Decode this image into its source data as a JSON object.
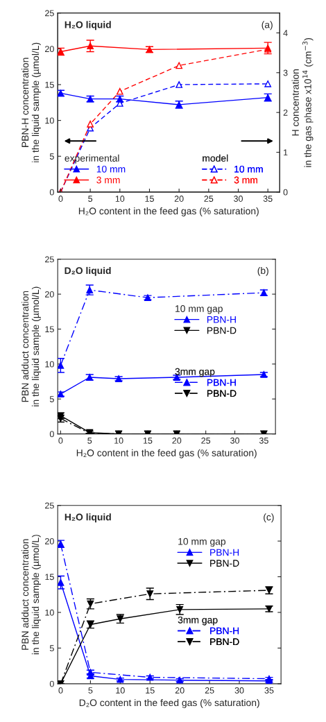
{
  "chart_data": [
    {
      "type": "line",
      "title": "H₂O liquid",
      "xlabel": "H₂O content in the feed gas (% saturation)",
      "ylabel": "PBN-H concentration\nin the liquid sample (µmol/L)",
      "y2label": "H concentration\nin the gas phase x10$^{14}$ (cm$^{−3}$)",
      "annotations": [
        "(a)",
        "experimental",
        "model"
      ],
      "xlim": [
        -0.5,
        37
      ],
      "xticks": [
        0,
        5,
        10,
        15,
        20,
        25,
        30,
        35
      ],
      "ylim": [
        0,
        25
      ],
      "yticks": [
        0,
        5,
        10,
        15,
        20,
        25
      ],
      "y2lim": [
        0,
        4.5
      ],
      "y2ticks": [
        0,
        1,
        2,
        3,
        4
      ],
      "legend": "bottom",
      "grid": false,
      "series": [
        {
          "name": "10 mm",
          "color": "#0000ff",
          "x": [
            0,
            5,
            10,
            20,
            35
          ],
          "values": [
            13.8,
            13.0,
            13.0,
            12.2,
            13.2
          ],
          "errors": [
            0.4,
            0.4,
            0.4,
            0.5,
            0.5
          ],
          "marker": "triangle",
          "line_style": "solid"
        },
        {
          "name": "3 mm",
          "color": "#ff0000",
          "x": [
            0,
            5,
            15,
            35
          ],
          "values": [
            19.6,
            20.4,
            19.9,
            20.1
          ],
          "errors": [
            0.5,
            0.8,
            0.4,
            0.8
          ],
          "marker": "triangle",
          "line_style": "solid"
        },
        {
          "name": "10 mm",
          "color": "#0000ff",
          "axis": "y2",
          "x": [
            0,
            5,
            10,
            20,
            35
          ],
          "values": [
            0,
            1.61,
            2.23,
            2.7,
            2.72
          ],
          "marker": "triangle_open",
          "line_style": "dashed"
        },
        {
          "name": "3 mm",
          "color": "#ff0000",
          "axis": "y2",
          "x": [
            0,
            5,
            10,
            20,
            35
          ],
          "values": [
            0,
            1.71,
            2.53,
            3.18,
            3.59
          ],
          "marker": "triangle_open",
          "line_style": "dashed"
        }
      ]
    },
    {
      "type": "line",
      "title": "D₂O liquid",
      "xlabel": "H₂O content in the feed gas (% saturation)",
      "ylabel": "PBN adduct concentration\nin the liquid sample (µmol/L)",
      "annotations": [
        "(b)",
        "10 mm gap",
        "3mm gap"
      ],
      "xlim": [
        -0.5,
        37
      ],
      "xticks": [
        0,
        5,
        10,
        15,
        20,
        25,
        30,
        35
      ],
      "ylim": [
        0,
        25
      ],
      "yticks": [
        0,
        5,
        10,
        15,
        20,
        25
      ],
      "legend": "right",
      "grid": false,
      "series": [
        {
          "name": "PBN-H",
          "color": "#0000ff",
          "x": [
            0,
            5,
            10,
            20,
            35
          ],
          "values": [
            5.7,
            8.1,
            7.9,
            8.1,
            8.5
          ],
          "errors": [
            0.3,
            0.4,
            0.3,
            0.3,
            0.3
          ],
          "marker": "triangle",
          "line_style": "solid"
        },
        {
          "name": "PBN-D",
          "color": "#000000",
          "x": [
            0,
            5,
            10,
            15,
            20,
            35
          ],
          "values": [
            2.6,
            0.2,
            0,
            0,
            0,
            0
          ],
          "errors": [
            0.4,
            0.2,
            null,
            null,
            null,
            null
          ],
          "marker": "triangle_down",
          "line_style": "solid"
        },
        {
          "name": "PBN-H",
          "color": "#0000ff",
          "x": [
            0,
            5,
            15,
            35
          ],
          "values": [
            9.8,
            20.6,
            19.5,
            20.2
          ],
          "errors": [
            1.0,
            0.7,
            0.3,
            0.4
          ],
          "marker": "triangle",
          "line_style": "dashdot"
        },
        {
          "name": "PBN-D",
          "color": "#000000",
          "x": [
            0,
            5,
            10,
            15,
            20,
            35
          ],
          "values": [
            2.2,
            0.1,
            0,
            0,
            0,
            0
          ],
          "errors": [
            0.5,
            null,
            null,
            null,
            null,
            null
          ],
          "marker": "triangle_down",
          "line_style": "dashdot"
        }
      ]
    },
    {
      "type": "line",
      "title": "H₂O liquid",
      "xlabel": "D₂O content in the feed gas (% saturation)",
      "ylabel": "PBN adduct concentration\nin the liquid sample (µmol/L)",
      "annotations": [
        "(c)",
        "10 mm gap",
        "3mm gap"
      ],
      "xlim": [
        -0.5,
        37
      ],
      "xticks": [
        0,
        5,
        10,
        15,
        20,
        25,
        30,
        35
      ],
      "ylim": [
        0,
        25
      ],
      "yticks": [
        0,
        5,
        10,
        15,
        20,
        25
      ],
      "legend": "right",
      "grid": false,
      "series": [
        {
          "name": "PBN-H",
          "color": "#0000ff",
          "x": [
            0,
            5,
            10,
            20,
            35
          ],
          "values": [
            14.2,
            1.1,
            0.6,
            0.5,
            0.4
          ],
          "errors": [
            0.9,
            0.3,
            0.2,
            0.2,
            0.2
          ],
          "marker": "triangle",
          "line_style": "solid"
        },
        {
          "name": "PBN-D",
          "color": "#000000",
          "x": [
            0,
            5,
            10,
            20,
            35
          ],
          "values": [
            0,
            8.3,
            9.1,
            10.4,
            10.5
          ],
          "errors": [
            null,
            0.5,
            0.6,
            0.7,
            0.4
          ],
          "marker": "triangle_down",
          "line_style": "solid"
        },
        {
          "name": "PBN-H",
          "color": "#0000ff",
          "x": [
            0,
            5,
            15,
            35
          ],
          "values": [
            19.6,
            1.6,
            0.9,
            0.7
          ],
          "errors": [
            0.5,
            0.3,
            0.2,
            0.2
          ],
          "marker": "triangle",
          "line_style": "dashdot"
        },
        {
          "name": "PBN-D",
          "color": "#000000",
          "x": [
            0,
            5,
            15,
            35
          ],
          "values": [
            0,
            11.2,
            12.6,
            13.1
          ],
          "errors": [
            null,
            0.7,
            0.8,
            0.5
          ],
          "marker": "triangle_down",
          "line_style": "dashdot"
        }
      ]
    }
  ]
}
